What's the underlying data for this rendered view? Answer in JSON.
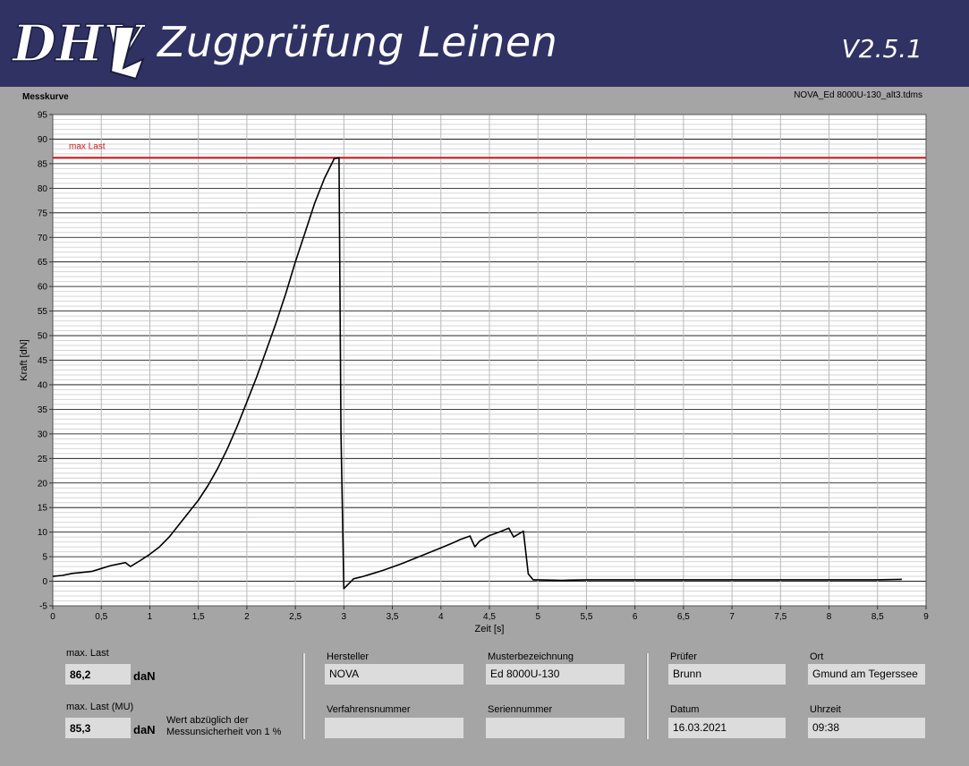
{
  "header": {
    "logo_text": "DHV",
    "title": "Zugprüfung Leinen",
    "version": "V2.5.1",
    "bg_color": "#2f3263"
  },
  "plot": {
    "title": "Messkurve",
    "file": "NOVA_Ed 8000U-130_alt3.tdms",
    "maxline_label": "max Last"
  },
  "chart_data": {
    "type": "line",
    "xlabel": "Zeit [s]",
    "ylabel": "Kraft [dN]",
    "xlim": [
      0,
      9
    ],
    "ylim": [
      -5,
      95
    ],
    "x_ticks": [
      "0",
      "0,5",
      "1",
      "1,5",
      "2",
      "2,5",
      "3",
      "3,5",
      "4",
      "4,5",
      "5",
      "5,5",
      "6",
      "6,5",
      "7",
      "7,5",
      "8",
      "8,5",
      "9"
    ],
    "y_ticks": [
      "-5",
      "0",
      "5",
      "10",
      "15",
      "20",
      "25",
      "30",
      "35",
      "40",
      "45",
      "50",
      "55",
      "60",
      "65",
      "70",
      "75",
      "80",
      "85",
      "90",
      "95"
    ],
    "grid": true,
    "max_load_line": 86.2,
    "max_load_color": "#d11a1a",
    "series": [
      {
        "color": "#000000",
        "x": [
          0,
          0.1,
          0.2,
          0.3,
          0.4,
          0.5,
          0.6,
          0.7,
          0.75,
          0.8,
          0.9,
          1.0,
          1.1,
          1.2,
          1.3,
          1.4,
          1.5,
          1.6,
          1.7,
          1.8,
          1.9,
          2.0,
          2.1,
          2.2,
          2.3,
          2.4,
          2.5,
          2.6,
          2.7,
          2.8,
          2.9,
          2.95,
          2.97,
          3.0,
          3.1,
          3.2,
          3.3,
          3.4,
          3.5,
          3.6,
          3.7,
          3.8,
          3.9,
          4.0,
          4.1,
          4.2,
          4.3,
          4.35,
          4.4,
          4.5,
          4.6,
          4.7,
          4.75,
          4.8,
          4.85,
          4.9,
          4.95,
          5.0,
          5.25,
          5.5,
          6.0,
          6.5,
          7.0,
          7.5,
          8.0,
          8.5,
          8.75
        ],
        "y": [
          1.0,
          1.2,
          1.6,
          1.8,
          2.0,
          2.6,
          3.2,
          3.6,
          3.8,
          3.0,
          4.2,
          5.5,
          7.0,
          9.0,
          11.5,
          14.0,
          16.5,
          19.5,
          23.0,
          27.0,
          31.5,
          36.5,
          41.5,
          47.0,
          52.5,
          58.5,
          65.0,
          71.0,
          77.0,
          82.0,
          86.0,
          86.2,
          30.0,
          -1.5,
          0.5,
          1.0,
          1.6,
          2.2,
          2.9,
          3.6,
          4.4,
          5.2,
          6.0,
          6.8,
          7.6,
          8.5,
          9.2,
          7.0,
          8.2,
          9.3,
          10.0,
          10.8,
          9.0,
          9.6,
          10.2,
          1.5,
          0.3,
          0.3,
          0.2,
          0.3,
          0.3,
          0.3,
          0.3,
          0.3,
          0.3,
          0.3,
          0.4
        ]
      }
    ]
  },
  "results": {
    "max_label": "max. Last",
    "max_value": "86,2",
    "max_unit": "daN",
    "mu_label": "max. Last (MU)",
    "mu_value": "85,3",
    "mu_unit": "daN",
    "mu_note_1": "Wert abzüglich der",
    "mu_note_2": "Messunsicherheit von 1 %"
  },
  "info": {
    "hersteller_label": "Hersteller",
    "hersteller": "NOVA",
    "muster_label": "Musterbezeichnung",
    "muster": "Ed 8000U-130",
    "verfahren_label": "Verfahrensnummer",
    "verfahren": "",
    "serien_label": "Seriennummer",
    "serien": "",
    "pruefer_label": "Prüfer",
    "pruefer": "Brunn",
    "ort_label": "Ort",
    "ort": "Gmund am Tegerssee",
    "datum_label": "Datum",
    "datum": "16.03.2021",
    "uhrzeit_label": "Uhrzeit",
    "uhrzeit": "09:38"
  }
}
